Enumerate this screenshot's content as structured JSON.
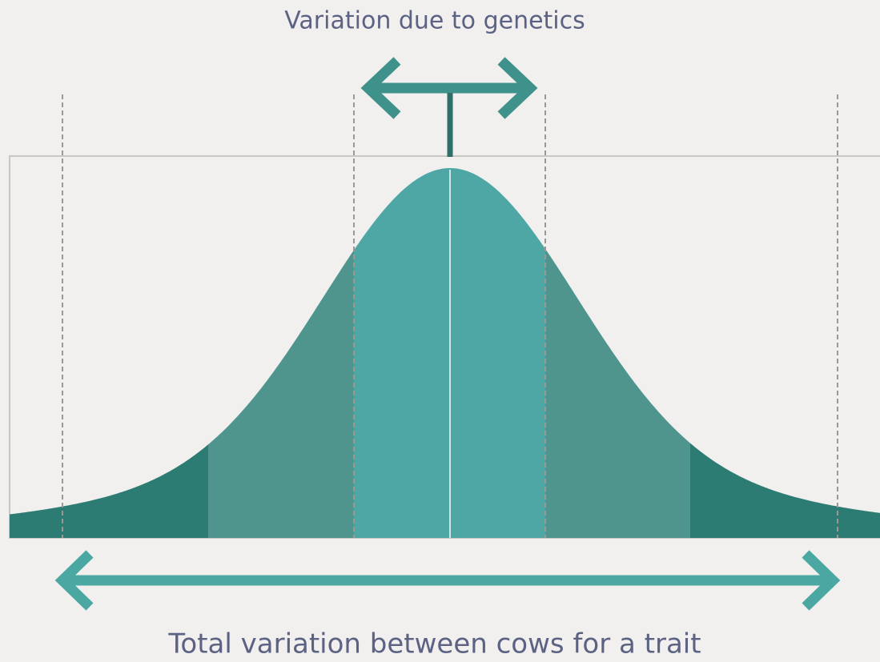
{
  "labels": {
    "top": "Variation due to genetics",
    "bottom": "Total variation between cows for a trait"
  }
}
